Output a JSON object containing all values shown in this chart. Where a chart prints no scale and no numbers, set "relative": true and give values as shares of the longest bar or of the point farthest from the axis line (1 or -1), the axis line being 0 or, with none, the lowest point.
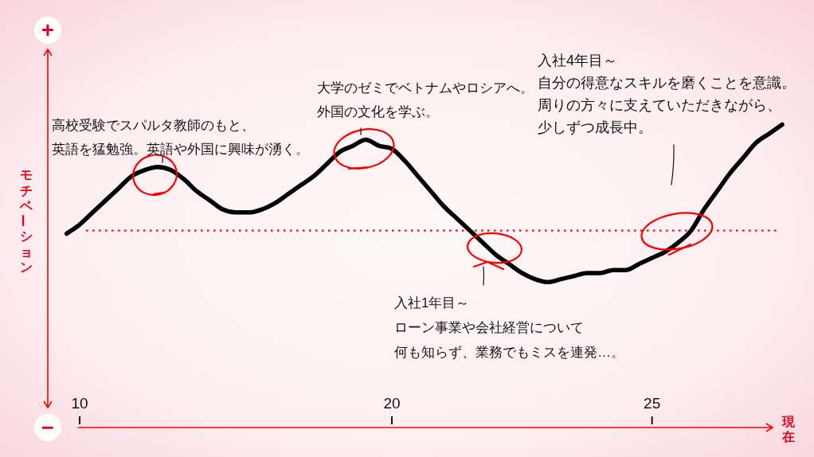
{
  "chart_data": {
    "type": "line",
    "relative": true,
    "categories": [
      null,
      "10",
      null,
      null,
      null,
      null,
      null,
      null,
      null,
      null,
      null,
      null,
      null,
      null,
      null,
      null,
      null,
      null,
      null,
      null,
      null,
      null,
      null,
      null,
      null,
      "20",
      null,
      null,
      null,
      null,
      null,
      null,
      null,
      null,
      null,
      null,
      null,
      null,
      null,
      null,
      null,
      null,
      null,
      null,
      null,
      "25",
      null,
      null,
      null,
      null,
      null,
      null,
      null,
      null,
      null,
      null
    ],
    "values": [
      0.64,
      0.67,
      0.71,
      0.75,
      0.79,
      0.83,
      0.85,
      0.86,
      0.85,
      0.82,
      0.78,
      0.75,
      0.72,
      0.71,
      0.71,
      0.72,
      0.74,
      0.77,
      0.8,
      0.83,
      0.87,
      0.91,
      0.93,
      0.95,
      0.93,
      0.92,
      0.88,
      0.83,
      0.78,
      0.73,
      0.69,
      0.65,
      0.61,
      0.57,
      0.54,
      0.51,
      0.49,
      0.48,
      0.49,
      0.5,
      0.51,
      0.51,
      0.52,
      0.52,
      0.54,
      0.56,
      0.58,
      0.61,
      0.65,
      0.72,
      0.78,
      0.84,
      0.89,
      0.94,
      0.97,
      1
    ],
    "color": "#000000",
    "line_style": "solid",
    "xlabel": "現在",
    "ylabel": "モチベーション",
    "tick_labels": "x",
    "ref_lines": [
      {
        "axis": "y",
        "value": 0.65,
        "color": "#ff0000",
        "line_style": "dotted"
      }
    ],
    "annotations": [
      "+",
      "−",
      "高校受験でスパルタ教師のもと、英語を猛勉強。英語や外国に興味が湧く。",
      "大学のゼミでベトナムやロシアへ。外国の文化を学ぶ。",
      "入社1年目～ローン事業や会社経営について何も知らず、業務でもミスを連発…。",
      "入社4年目～自分の得意なスキルを磨くことを意識。周りの方々に支えていただきながら、少しずつ成長中。"
    ]
  }
}
